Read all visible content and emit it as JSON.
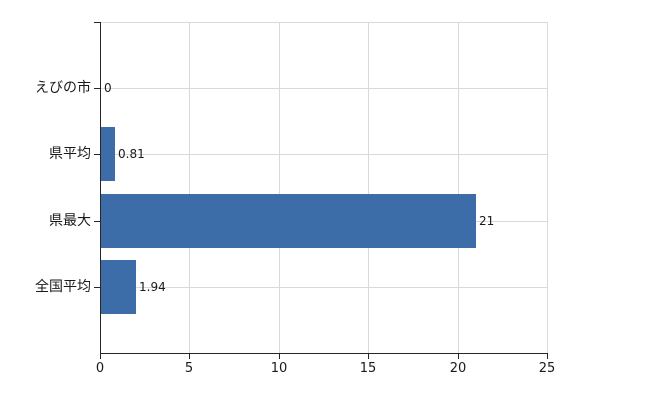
{
  "chart_data": {
    "type": "bar",
    "orientation": "horizontal",
    "title": "",
    "xlabel": "",
    "ylabel": "",
    "categories": [
      "えびの市",
      "県平均",
      "県最大",
      "全国平均"
    ],
    "values": [
      0,
      0.81,
      21,
      1.94
    ],
    "value_labels": [
      "0",
      "0.81",
      "21",
      "1.94"
    ],
    "xlim": [
      0,
      25
    ],
    "x_ticks": [
      "0",
      "5",
      "10",
      "15",
      "20",
      "25"
    ],
    "x_tick_values": [
      0,
      5,
      10,
      15,
      20,
      25
    ],
    "grid": true,
    "legend": "none",
    "colors": {
      "bar": "#3d6da9",
      "grid": "#d9d9d9",
      "axis": "#262626",
      "text": "#1a1a1a",
      "background": "#ffffff"
    }
  }
}
